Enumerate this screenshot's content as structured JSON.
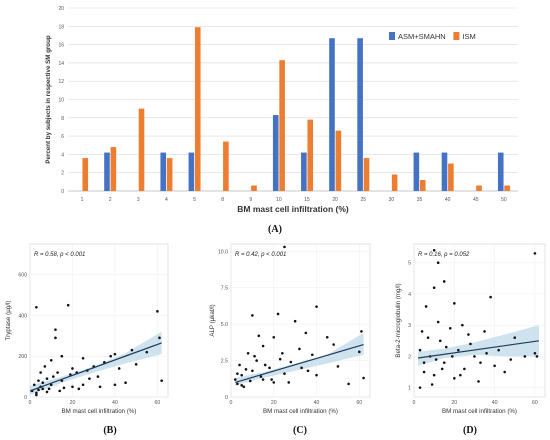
{
  "colors": {
    "asm": "#4472C4",
    "ism": "#ED7D31",
    "regression": "#1F3A5A",
    "ci_band": "#BFD9EA",
    "points": "#111111"
  },
  "chart_data": [
    {
      "type": "bar",
      "panel_label": "(A)",
      "xlabel": "BM mast cell infiltration (%)",
      "ylabel": "Percent by subjects in respective SM group",
      "ylim": [
        0,
        20
      ],
      "yticks": [
        "0",
        "2",
        "4",
        "6",
        "8",
        "10",
        "12",
        "14",
        "16",
        "18",
        "20"
      ],
      "grid": true,
      "legend_position": "top-right",
      "categories": [
        "1",
        "2",
        "3",
        "4",
        "5",
        "8",
        "9",
        "10",
        "15",
        "20",
        "25",
        "30",
        "35",
        "40",
        "45",
        "50"
      ],
      "series": [
        {
          "name": "ASM+SMAHN",
          "color_key": "asm",
          "values": [
            0,
            4.2,
            0,
            4.2,
            4.2,
            0,
            0,
            8.3,
            4.2,
            16.7,
            16.7,
            0,
            4.2,
            4.2,
            0,
            4.2
          ]
        },
        {
          "name": "ISM",
          "color_key": "ism",
          "values": [
            3.6,
            4.8,
            9.0,
            3.6,
            17.9,
            5.4,
            0.6,
            14.3,
            7.8,
            6.6,
            3.6,
            1.8,
            1.2,
            3.0,
            0.6,
            0.6
          ]
        }
      ]
    },
    {
      "type": "scatter",
      "panel_label": "(B)",
      "annotation": "R = 0.58, p < 0.001",
      "xlabel": "BM mast cell infiltration (%)",
      "ylabel": "Tryptase (µg/l)",
      "xlim": [
        0,
        65
      ],
      "ylim": [
        0,
        750
      ],
      "xticks": [
        "0",
        "20",
        "40",
        "60"
      ],
      "yticks": [
        "0",
        "200",
        "400",
        "600"
      ],
      "regression": {
        "x": [
          0,
          62
        ],
        "y": [
          30,
          265
        ]
      },
      "ci": {
        "x": [
          0,
          15,
          30,
          45,
          62
        ],
        "lower": [
          10,
          70,
          120,
          165,
          210
        ],
        "upper": [
          55,
          100,
          150,
          215,
          320
        ]
      },
      "points": [
        [
          3,
          440
        ],
        [
          1,
          30
        ],
        [
          2,
          60
        ],
        [
          3,
          20
        ],
        [
          4,
          80
        ],
        [
          5,
          50
        ],
        [
          5,
          120
        ],
        [
          6,
          40
        ],
        [
          7,
          150
        ],
        [
          8,
          90
        ],
        [
          10,
          60
        ],
        [
          10,
          180
        ],
        [
          12,
          290
        ],
        [
          12,
          330
        ],
        [
          13,
          120
        ],
        [
          15,
          80
        ],
        [
          15,
          200
        ],
        [
          18,
          450
        ],
        [
          20,
          50
        ],
        [
          20,
          140
        ],
        [
          22,
          120
        ],
        [
          25,
          60
        ],
        [
          25,
          190
        ],
        [
          28,
          90
        ],
        [
          30,
          150
        ],
        [
          32,
          100
        ],
        [
          35,
          170
        ],
        [
          38,
          200
        ],
        [
          40,
          60
        ],
        [
          40,
          210
        ],
        [
          42,
          140
        ],
        [
          45,
          70
        ],
        [
          50,
          160
        ],
        [
          55,
          220
        ],
        [
          60,
          420
        ],
        [
          61,
          290
        ],
        [
          62,
          80
        ],
        [
          3,
          10
        ],
        [
          4,
          35
        ],
        [
          6,
          70
        ],
        [
          8,
          25
        ],
        [
          9,
          40
        ],
        [
          11,
          100
        ],
        [
          14,
          30
        ],
        [
          16,
          45
        ],
        [
          19,
          110
        ],
        [
          23,
          40
        ],
        [
          27,
          130
        ],
        [
          33,
          50
        ],
        [
          48,
          230
        ]
      ]
    },
    {
      "type": "scatter",
      "panel_label": "(C)",
      "annotation": "R = 0.42, p < 0.001",
      "xlabel": "BM mast cell infiltration (%)",
      "ylabel": "ALP (µkat/l)",
      "xlim": [
        0,
        65
      ],
      "ylim": [
        0,
        10.5
      ],
      "xticks": [
        "0",
        "20",
        "40",
        "60"
      ],
      "yticks": [
        "0",
        "2.5",
        "5.0",
        "7.5",
        "10.0"
      ],
      "regression": {
        "x": [
          2,
          62
        ],
        "y": [
          1.0,
          3.6
        ]
      },
      "ci": {
        "x": [
          2,
          15,
          30,
          45,
          62
        ],
        "lower": [
          0.8,
          1.3,
          1.8,
          2.3,
          2.9
        ],
        "upper": [
          1.3,
          1.7,
          2.3,
          2.9,
          4.4
        ]
      },
      "points": [
        [
          25,
          10.3
        ],
        [
          2,
          1.2
        ],
        [
          3,
          0.9
        ],
        [
          4,
          2.2
        ],
        [
          5,
          1.5
        ],
        [
          6,
          0.7
        ],
        [
          8,
          3.0
        ],
        [
          10,
          5.6
        ],
        [
          10,
          1.8
        ],
        [
          12,
          2.5
        ],
        [
          13,
          4.2
        ],
        [
          15,
          1.2
        ],
        [
          15,
          3.5
        ],
        [
          18,
          2.0
        ],
        [
          20,
          1.0
        ],
        [
          20,
          4.1
        ],
        [
          22,
          5.7
        ],
        [
          24,
          3.0
        ],
        [
          25,
          1.6
        ],
        [
          28,
          2.4
        ],
        [
          30,
          5.2
        ],
        [
          32,
          3.3
        ],
        [
          35,
          4.4
        ],
        [
          38,
          2.9
        ],
        [
          40,
          6.2
        ],
        [
          40,
          1.5
        ],
        [
          45,
          4.1
        ],
        [
          50,
          2.1
        ],
        [
          55,
          0.9
        ],
        [
          60,
          3.1
        ],
        [
          61,
          4.5
        ],
        [
          62,
          1.3
        ],
        [
          3,
          1.6
        ],
        [
          5,
          0.8
        ],
        [
          7,
          1.9
        ],
        [
          9,
          1.1
        ],
        [
          11,
          2.8
        ],
        [
          14,
          1.4
        ],
        [
          16,
          2.2
        ],
        [
          19,
          1.2
        ],
        [
          23,
          2.6
        ],
        [
          27,
          1.0
        ],
        [
          33,
          2.0
        ],
        [
          36,
          1.8
        ],
        [
          48,
          3.6
        ]
      ]
    },
    {
      "type": "scatter",
      "panel_label": "(D)",
      "annotation": "R = 0.16, p = 0.052",
      "xlabel": "BM mast cell infiltration (%)",
      "ylabel": "Beta-2-microglobulin (mg/l)",
      "xlim": [
        0,
        65
      ],
      "ylim": [
        0.7,
        5.6
      ],
      "xticks": [
        "0",
        "20",
        "40",
        "60"
      ],
      "yticks": [
        "1",
        "2",
        "3",
        "4",
        "5"
      ],
      "regression": {
        "x": [
          2,
          62
        ],
        "y": [
          1.95,
          2.5
        ]
      },
      "ci": {
        "x": [
          2,
          15,
          30,
          45,
          62
        ],
        "lower": [
          1.7,
          1.95,
          2.05,
          2.0,
          2.0
        ],
        "upper": [
          2.15,
          2.25,
          2.45,
          2.7,
          3.0
        ]
      },
      "points": [
        [
          60,
          5.3
        ],
        [
          10,
          5.4
        ],
        [
          12,
          5.0
        ],
        [
          3,
          1.0
        ],
        [
          4,
          2.8
        ],
        [
          5,
          1.5
        ],
        [
          6,
          3.6
        ],
        [
          8,
          2.0
        ],
        [
          10,
          4.2
        ],
        [
          10,
          1.4
        ],
        [
          12,
          3.1
        ],
        [
          13,
          2.5
        ],
        [
          15,
          1.8
        ],
        [
          15,
          4.4
        ],
        [
          18,
          2.9
        ],
        [
          20,
          1.3
        ],
        [
          20,
          3.7
        ],
        [
          22,
          2.2
        ],
        [
          24,
          3.0
        ],
        [
          25,
          1.6
        ],
        [
          28,
          2.4
        ],
        [
          30,
          2.0
        ],
        [
          32,
          1.2
        ],
        [
          35,
          2.8
        ],
        [
          38,
          3.9
        ],
        [
          40,
          1.7
        ],
        [
          42,
          2.2
        ],
        [
          45,
          1.5
        ],
        [
          50,
          2.6
        ],
        [
          55,
          2.0
        ],
        [
          60,
          2.1
        ],
        [
          61,
          2.0
        ],
        [
          3,
          2.2
        ],
        [
          5,
          1.8
        ],
        [
          7,
          2.6
        ],
        [
          9,
          1.1
        ],
        [
          11,
          1.9
        ],
        [
          14,
          1.6
        ],
        [
          16,
          2.3
        ],
        [
          19,
          2.0
        ],
        [
          23,
          1.4
        ],
        [
          27,
          2.7
        ],
        [
          33,
          1.8
        ],
        [
          36,
          2.1
        ],
        [
          48,
          1.9
        ]
      ]
    }
  ]
}
